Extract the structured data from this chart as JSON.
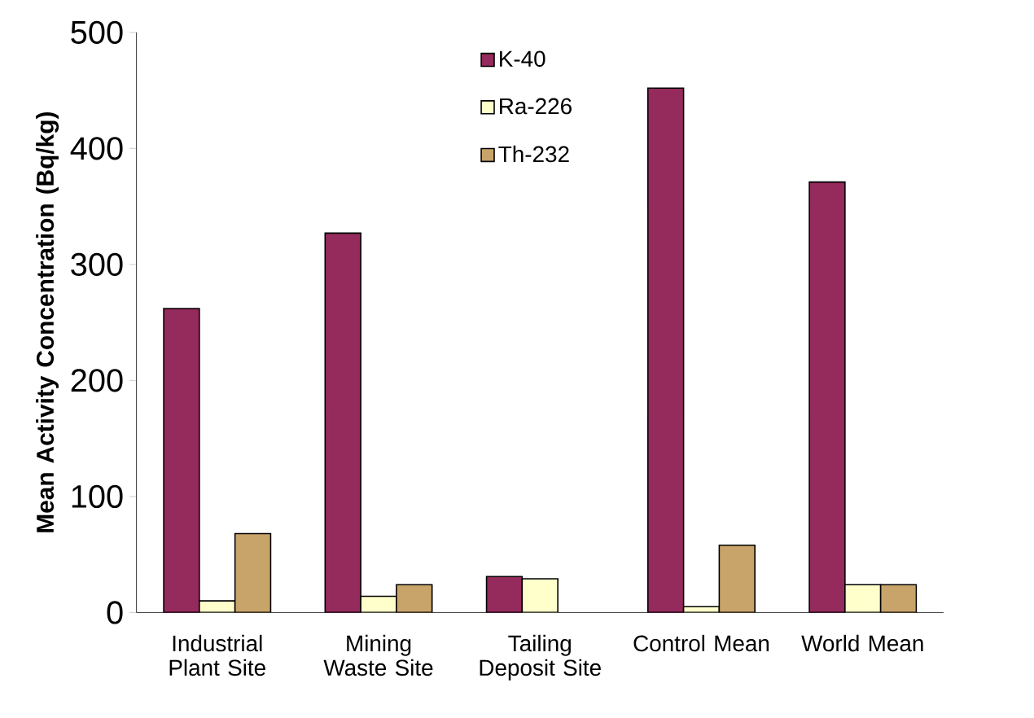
{
  "chart_data": {
    "type": "bar",
    "ylabel": "Mean Activity Concentration (Bq/kg)",
    "categories": [
      "Industrial Plant Site",
      "Mining Waste Site",
      "Tailing Deposit Site",
      "Control Mean",
      "World Mean"
    ],
    "series": [
      {
        "name": "K-40",
        "color": "#952a5c",
        "values": [
          262,
          327,
          31,
          452,
          371
        ]
      },
      {
        "name": "Ra-226",
        "color": "#ffffcc",
        "values": [
          10,
          14,
          29,
          5,
          24
        ]
      },
      {
        "name": "Th-232",
        "color": "#c8a46a",
        "values": [
          68,
          24,
          null,
          58,
          24
        ]
      }
    ],
    "ylim": [
      0,
      500
    ],
    "yticks": [
      0,
      100,
      200,
      300,
      400,
      500
    ],
    "grid": false,
    "legend": "top"
  }
}
